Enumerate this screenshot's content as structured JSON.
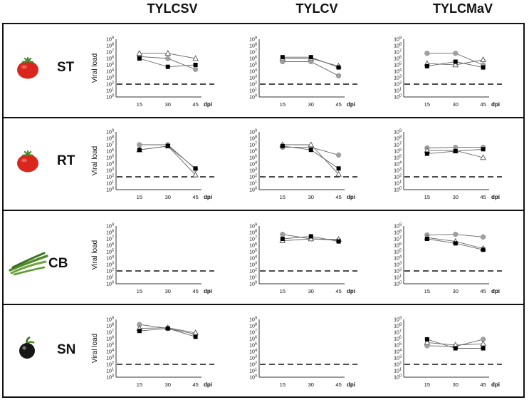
{
  "virus_headers": [
    "TYLCSV",
    "TYLCV",
    "TYLCMaV"
  ],
  "hosts": [
    {
      "code": "ST",
      "icon": "tomato-icon",
      "color": "#d9271e"
    },
    {
      "code": "RT",
      "icon": "tomato-icon",
      "color": "#d9271e"
    },
    {
      "code": "CB",
      "icon": "bean-pods-icon",
      "color": "#4f8a2a"
    },
    {
      "code": "SN",
      "icon": "nightshade-berry-icon",
      "color": "#1a1a1a"
    }
  ],
  "axis": {
    "ylabel": "Viral load",
    "xlabel": "dpi",
    "x_ticks": [
      "15",
      "30",
      "45"
    ],
    "y_tick_base": "10",
    "y_tick_exponents": [
      "9",
      "8",
      "7",
      "6",
      "5",
      "4",
      "3",
      "2",
      "1",
      "0"
    ],
    "threshold_label_exponent": 2
  },
  "legend_styles": {
    "series_a": {
      "marker": "filled-square",
      "color": "#000000"
    },
    "series_b": {
      "marker": "open-triangle",
      "color": "#555555"
    },
    "series_c": {
      "marker": "filled-circle",
      "color": "#a0a0a0"
    }
  },
  "chart_data": [
    {
      "type": "line",
      "host": "ST",
      "virus": "TYLCSV",
      "x": [
        15,
        30,
        45
      ],
      "ylim_log10": [
        0,
        9
      ],
      "threshold_log10": 2,
      "show_ylabel": true,
      "series": [
        {
          "name": "series_a",
          "values": [
            6.0,
            4.7,
            5.0
          ]
        },
        {
          "name": "series_b",
          "values": [
            6.8,
            6.8,
            6.0
          ]
        },
        {
          "name": "series_c",
          "values": [
            6.3,
            6.0,
            4.3
          ]
        }
      ]
    },
    {
      "type": "line",
      "host": "ST",
      "virus": "TYLCV",
      "x": [
        15,
        30,
        45
      ],
      "ylim_log10": [
        0,
        9
      ],
      "threshold_log10": 2,
      "show_ylabel": false,
      "series": [
        {
          "name": "series_a",
          "values": [
            6.2,
            6.2,
            4.6
          ]
        },
        {
          "name": "series_b",
          "values": [
            6.0,
            6.0,
            4.8
          ]
        },
        {
          "name": "series_c",
          "values": [
            5.5,
            5.5,
            3.3
          ]
        }
      ]
    },
    {
      "type": "line",
      "host": "ST",
      "virus": "TYLCMaV",
      "x": [
        15,
        30,
        45
      ],
      "ylim_log10": [
        0,
        9
      ],
      "threshold_log10": 2,
      "show_ylabel": false,
      "series": [
        {
          "name": "series_a",
          "values": [
            4.8,
            5.5,
            4.6
          ]
        },
        {
          "name": "series_b",
          "values": [
            5.2,
            5.0,
            5.8
          ]
        },
        {
          "name": "series_c",
          "values": [
            6.8,
            6.8,
            5.0
          ]
        }
      ]
    },
    {
      "type": "line",
      "host": "RT",
      "virus": "TYLCSV",
      "x": [
        15,
        30,
        45
      ],
      "ylim_log10": [
        0,
        9
      ],
      "threshold_log10": 2,
      "show_ylabel": true,
      "series": [
        {
          "name": "series_a",
          "values": [
            6.2,
            6.8,
            3.3
          ]
        },
        {
          "name": "series_b",
          "values": [
            6.2,
            6.8,
            2.3
          ]
        },
        {
          "name": "series_c",
          "values": [
            7.0,
            7.0,
            3.2
          ]
        }
      ]
    },
    {
      "type": "line",
      "host": "RT",
      "virus": "TYLCV",
      "x": [
        15,
        30,
        45
      ],
      "ylim_log10": [
        0,
        9
      ],
      "threshold_log10": 2,
      "show_ylabel": false,
      "series": [
        {
          "name": "series_a",
          "values": [
            6.8,
            6.2,
            3.3
          ]
        },
        {
          "name": "series_b",
          "values": [
            7.0,
            7.0,
            2.4
          ]
        },
        {
          "name": "series_c",
          "values": [
            6.6,
            6.6,
            5.4
          ]
        }
      ]
    },
    {
      "type": "line",
      "host": "RT",
      "virus": "TYLCMaV",
      "x": [
        15,
        30,
        45
      ],
      "ylim_log10": [
        0,
        9
      ],
      "threshold_log10": 2,
      "show_ylabel": false,
      "series": [
        {
          "name": "series_a",
          "values": [
            5.6,
            6.0,
            6.3
          ]
        },
        {
          "name": "series_b",
          "values": [
            6.1,
            6.1,
            5.0
          ]
        },
        {
          "name": "series_c",
          "values": [
            6.5,
            6.6,
            6.6
          ]
        }
      ]
    },
    {
      "type": "line",
      "host": "CB",
      "virus": "TYLCSV",
      "x": [
        15,
        30,
        45
      ],
      "ylim_log10": [
        0,
        9
      ],
      "threshold_log10": 2,
      "show_ylabel": true,
      "series": []
    },
    {
      "type": "line",
      "host": "CB",
      "virus": "TYLCV",
      "x": [
        15,
        30,
        45
      ],
      "ylim_log10": [
        0,
        9
      ],
      "threshold_log10": 2,
      "show_ylabel": false,
      "series": [
        {
          "name": "series_a",
          "values": [
            7.0,
            7.4,
            6.6
          ]
        },
        {
          "name": "series_b",
          "values": [
            6.7,
            7.0,
            6.9
          ]
        },
        {
          "name": "series_c",
          "values": [
            7.7,
            7.0,
            6.8
          ]
        }
      ]
    },
    {
      "type": "line",
      "host": "CB",
      "virus": "TYLCMaV",
      "x": [
        15,
        30,
        45
      ],
      "ylim_log10": [
        0,
        9
      ],
      "threshold_log10": 2,
      "show_ylabel": false,
      "series": [
        {
          "name": "series_a",
          "values": [
            7.0,
            6.3,
            5.3
          ]
        },
        {
          "name": "series_b",
          "values": [
            7.2,
            6.6,
            5.5
          ]
        },
        {
          "name": "series_c",
          "values": [
            7.6,
            7.7,
            7.3
          ]
        }
      ]
    },
    {
      "type": "line",
      "host": "SN",
      "virus": "TYLCSV",
      "x": [
        15,
        30,
        45
      ],
      "ylim_log10": [
        0,
        9
      ],
      "threshold_log10": 2,
      "show_ylabel": true,
      "series": [
        {
          "name": "series_a",
          "values": [
            7.2,
            7.6,
            6.3
          ]
        },
        {
          "name": "series_b",
          "values": [
            7.6,
            7.7,
            6.9
          ]
        },
        {
          "name": "series_c",
          "values": [
            8.2,
            7.6,
            6.7
          ]
        }
      ]
    },
    {
      "type": "line",
      "host": "SN",
      "virus": "TYLCV",
      "x": [
        15,
        30,
        45
      ],
      "ylim_log10": [
        0,
        9
      ],
      "threshold_log10": 2,
      "show_ylabel": false,
      "series": []
    },
    {
      "type": "line",
      "host": "SN",
      "virus": "TYLCMaV",
      "x": [
        15,
        30,
        45
      ],
      "ylim_log10": [
        0,
        9
      ],
      "threshold_log10": 2,
      "show_ylabel": false,
      "series": [
        {
          "name": "series_a",
          "values": [
            5.9,
            4.5,
            4.5
          ]
        },
        {
          "name": "series_b",
          "values": [
            5.4,
            5.0,
            5.2
          ]
        },
        {
          "name": "series_c",
          "values": [
            4.9,
            4.8,
            5.9
          ]
        }
      ]
    }
  ]
}
